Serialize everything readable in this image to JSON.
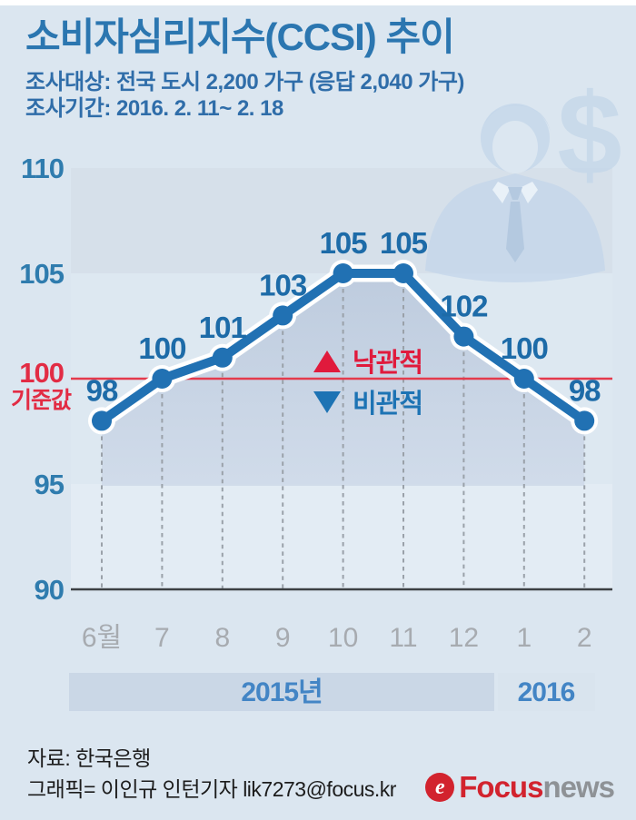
{
  "header": {
    "title": "소비자심리지수(CCSI) 추이",
    "survey_target": "조사대상: 전국 도시 2,200 가구 (응답 2,040 가구)",
    "survey_period": "조사기간: 2016. 2. 11~ 2. 18"
  },
  "chart_data": {
    "type": "line",
    "title": "소비자심리지수(CCSI) 추이",
    "categories": [
      "6월",
      "7",
      "8",
      "9",
      "10",
      "11",
      "12",
      "1",
      "2"
    ],
    "values": [
      98,
      100,
      101,
      103,
      105,
      105,
      102,
      100,
      98
    ],
    "ylim": [
      90,
      110
    ],
    "yticks": [
      110,
      105,
      100,
      95,
      90
    ],
    "grid": "dashed-vertical-per-point",
    "legend_position": "center",
    "baseline": {
      "value": 100,
      "tick_label": "100",
      "label": "기준값"
    },
    "legend": [
      {
        "symbol": "▲",
        "label": "낙관적",
        "color": "#e01a3c"
      },
      {
        "symbol": "▼",
        "label": "비관적",
        "color": "#1d73b4"
      }
    ],
    "year_bands": [
      {
        "label": "2015년",
        "covers": "6월~12월"
      },
      {
        "label": "2016",
        "covers": "1월~2월"
      }
    ]
  },
  "watermark": {
    "description": "businessman-silhouette-and-dollar",
    "dollar": "$"
  },
  "footer": {
    "source": "자료: 한국은행",
    "credit": "그래픽= 이인규 인턴기자 lik7273@focus.kr",
    "logo": {
      "mark": "e",
      "brand": "Focus",
      "suffix": "news"
    }
  },
  "colors": {
    "background": "#dbe6f0",
    "title_blue": "#2b76b0",
    "line_blue": "#2171b3",
    "value_label_blue": "#1d6ba8",
    "axis_tick_blue": "#2f7cae",
    "baseline_red": "#e43a4c",
    "optimistic_red": "#e01a3c",
    "pessimistic_blue": "#1d73b4",
    "month_gray": "#a7abb0",
    "year_text_blue": "#4385c5",
    "band_2015": "#cad7e6",
    "band_2016": "#d9e4ee",
    "area_fill_top": "#bfcde0",
    "area_fill_bottom": "#cfdae9",
    "logo_red": "#d2232e",
    "logo_gray": "#8e9296"
  }
}
